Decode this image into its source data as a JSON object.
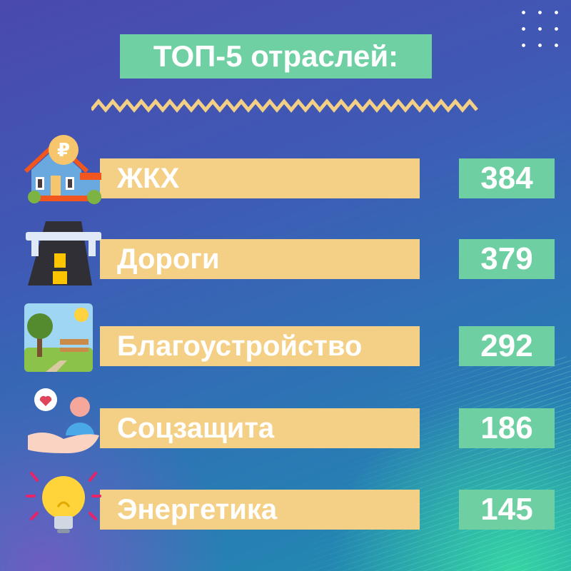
{
  "title": "ТОП-5 отраслей:",
  "items": [
    {
      "label": "ЖКХ",
      "value": "384",
      "icon": "house-ruble-icon"
    },
    {
      "label": "Дороги",
      "value": "379",
      "icon": "road-bridge-icon"
    },
    {
      "label": "Благоустройство",
      "value": "292",
      "icon": "park-bench-icon"
    },
    {
      "label": "Соцзащита",
      "value": "186",
      "icon": "social-care-hand-icon"
    },
    {
      "label": "Энергетика",
      "value": "145",
      "icon": "light-bulb-icon"
    }
  ],
  "colors": {
    "title_bg": "#6fd0a4",
    "bar": "#f4cf86",
    "value_bg": "#6ecfa2"
  }
}
